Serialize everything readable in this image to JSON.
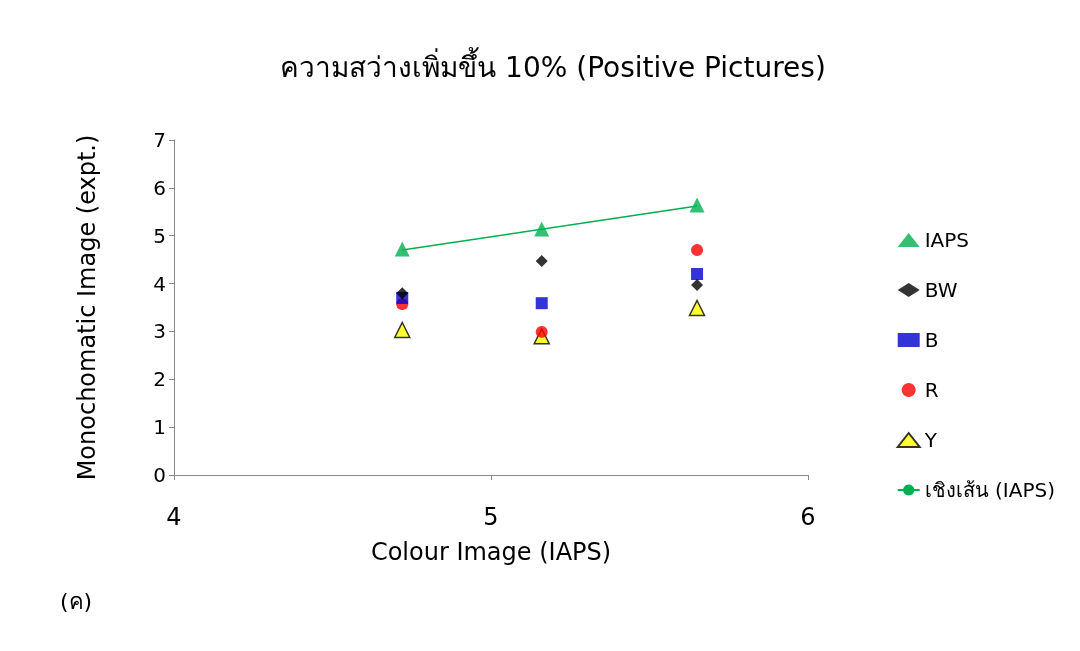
{
  "chart_data": {
    "type": "scatter",
    "title": "ความสว่างเพิ่มขึ้น 10% (Positive Pictures)",
    "xlabel": "Colour Image (IAPS)",
    "ylabel": "Monochomatic Image (expt.)",
    "x": [
      4.72,
      5.16,
      5.65
    ],
    "series": [
      {
        "name": "IAPS",
        "color": "#00b050",
        "marker": "triangle",
        "values": [
          4.72,
          5.14,
          5.64
        ]
      },
      {
        "name": "BW",
        "color": "#000000",
        "marker": "diamond",
        "values": [
          3.8,
          4.47,
          3.97
        ]
      },
      {
        "name": "B",
        "color": "#0000cc",
        "marker": "square",
        "values": [
          3.7,
          3.59,
          4.2
        ]
      },
      {
        "name": "R",
        "color": "#ff0000",
        "marker": "circle",
        "values": [
          3.57,
          2.99,
          4.7
        ]
      },
      {
        "name": "Y",
        "color": "#ffff00",
        "marker": "triangle",
        "values": [
          3.03,
          2.9,
          3.49
        ]
      },
      {
        "name": "เชิงเส้น (IAPS)",
        "type": "line",
        "color": "#00b050",
        "marker": "none",
        "x": [
          4.72,
          5.65
        ],
        "values": [
          4.7,
          5.62
        ]
      }
    ],
    "xlim": [
      4,
      6
    ],
    "xticks": [
      4,
      5,
      6
    ],
    "ylim": [
      0,
      7
    ],
    "yticks": [
      0,
      1,
      2,
      3,
      4,
      5,
      6,
      7
    ],
    "grid": false,
    "legend": "right",
    "annotations": [
      "(ค)"
    ]
  }
}
